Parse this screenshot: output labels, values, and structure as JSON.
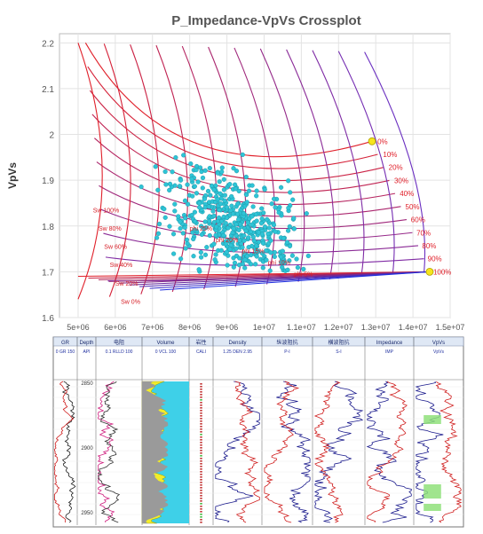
{
  "chart_data": [
    {
      "type": "scatter",
      "title": "P_Impedance-VpVs Crossplot",
      "ylabel": "VpVs",
      "xlabel": "",
      "xlim": [
        4500000,
        15000000
      ],
      "ylim": [
        1.6,
        2.22
      ],
      "x_ticks": [
        5000000,
        6000000,
        7000000,
        8000000,
        9000000,
        10000000,
        11000000,
        12000000,
        13000000,
        14000000,
        15000000
      ],
      "x_tick_labels": [
        "5e+06",
        "6e+06",
        "7e+06",
        "8e+06",
        "9e+06",
        "1e+07",
        "1.1e+07",
        "1.2e+07",
        "1.3e+07",
        "1.4e+07",
        "1.5e+07"
      ],
      "y_ticks": [
        1.6,
        1.7,
        1.8,
        1.9,
        2.0,
        2.1,
        2.2
      ],
      "y_tick_labels": [
        "1.6",
        "1.7",
        "1.8",
        "1.9",
        "2",
        "2.1",
        "2.2"
      ],
      "grid": true,
      "point_color": "#2ec4d6",
      "template": {
        "red_color": "#e0202a",
        "purple_color": "#6a2ec0",
        "blue_color": "#2030e0",
        "yellow_marker_color": "#f6e51c",
        "end_point_top": [
          12900000,
          1.985
        ],
        "end_point_bottom": [
          14450000,
          1.7
        ],
        "curve_labels": [
          "0%",
          "10%",
          "20%",
          "30%",
          "40%",
          "50%",
          "60%",
          "70%",
          "80%",
          "90%",
          "100%"
        ],
        "left_labels": [
          "Sw 100%",
          "Sw 80%",
          "Sw 60%",
          "Sw 40%",
          "Sw 20%",
          "Sw 0%"
        ],
        "inner_labels": [
          "phi 25%",
          "phi 20%",
          "phi 15%",
          "phi 10%",
          "phi 5%"
        ]
      },
      "points_summary": {
        "cluster_center": [
          9200000,
          1.8
        ],
        "count_approx": 480,
        "x_range": [
          6600000,
          12600000
        ],
        "y_range": [
          1.7,
          2.05
        ]
      }
    },
    {
      "type": "table",
      "title": "",
      "tracks": [
        {
          "header": "GR",
          "sub": [
            "0",
            "GR",
            "150"
          ]
        },
        {
          "header": "Depth",
          "sub": [
            "",
            "API",
            ""
          ]
        },
        {
          "header": "电阻",
          "sub": [
            "0.1",
            "RLLD",
            "100"
          ]
        },
        {
          "header": "Volume",
          "sub": [
            "0",
            "VCL",
            "100"
          ]
        },
        {
          "header": "岩性",
          "sub": [
            "",
            "CALI",
            ""
          ]
        },
        {
          "header": "Density",
          "sub": [
            "1.25",
            "DEN",
            "2.95"
          ]
        },
        {
          "header": "纵波阻抗",
          "sub": [
            "",
            "P-I",
            ""
          ]
        },
        {
          "header": "横波阻抗",
          "sub": [
            "",
            "S-I",
            ""
          ]
        },
        {
          "header": "Impedance",
          "sub": [
            "",
            "IMP",
            ""
          ]
        },
        {
          "header": "VpVs",
          "sub": [
            "",
            "VpVs",
            ""
          ]
        }
      ],
      "depth_labels": [
        "2850",
        "2900",
        "2950"
      ]
    }
  ]
}
